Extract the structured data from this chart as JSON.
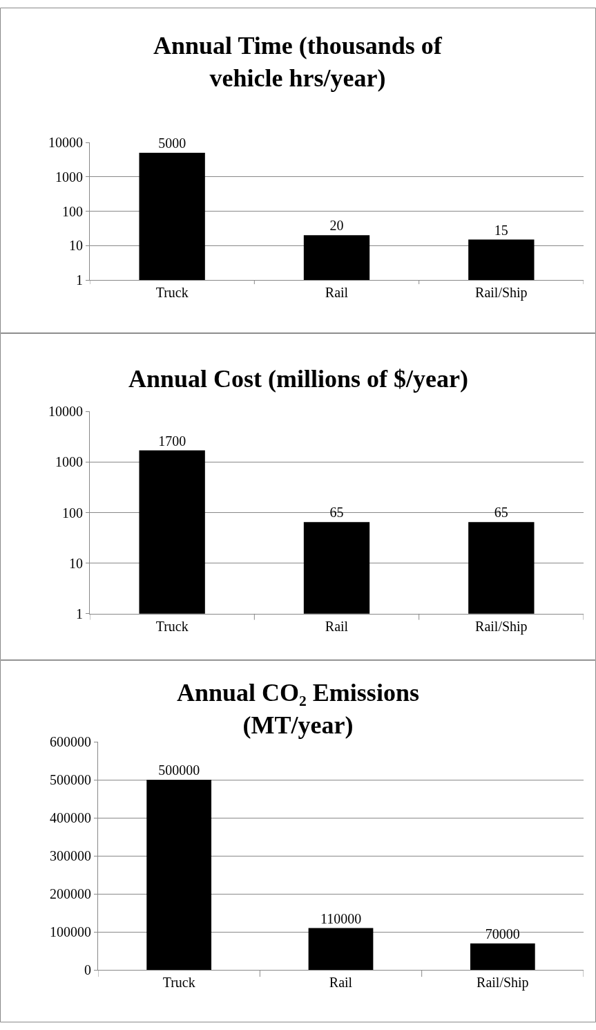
{
  "chart_data": [
    {
      "type": "bar",
      "title": "Annual Time (thousands of vehicle hrs/year)",
      "categories": [
        "Truck",
        "Rail",
        "Rail/Ship"
      ],
      "values": [
        5000,
        20,
        15
      ],
      "color": "#000000",
      "log": "y",
      "ylim": [
        1,
        10000
      ],
      "yticks": [
        1,
        10,
        100,
        1000,
        10000
      ],
      "grid": "y",
      "data_labels": true
    },
    {
      "type": "bar",
      "title": "Annual Cost (millions of $/year)",
      "categories": [
        "Truck",
        "Rail",
        "Rail/Ship"
      ],
      "values": [
        1700,
        65,
        65
      ],
      "color": "#000000",
      "log": "y",
      "ylim": [
        1,
        10000
      ],
      "yticks": [
        1,
        10,
        100,
        1000,
        10000
      ],
      "grid": "y",
      "data_labels": true
    },
    {
      "type": "bar",
      "title": "Annual CO₂ Emissions (MT/year)",
      "categories": [
        "Truck",
        "Rail",
        "Rail/Ship"
      ],
      "values": [
        500000,
        110000,
        70000
      ],
      "color": "#000000",
      "ylim": [
        0,
        600000
      ],
      "yticks": [
        0,
        100000,
        200000,
        300000,
        400000,
        500000,
        600000
      ],
      "grid": "y",
      "data_labels": true
    }
  ]
}
